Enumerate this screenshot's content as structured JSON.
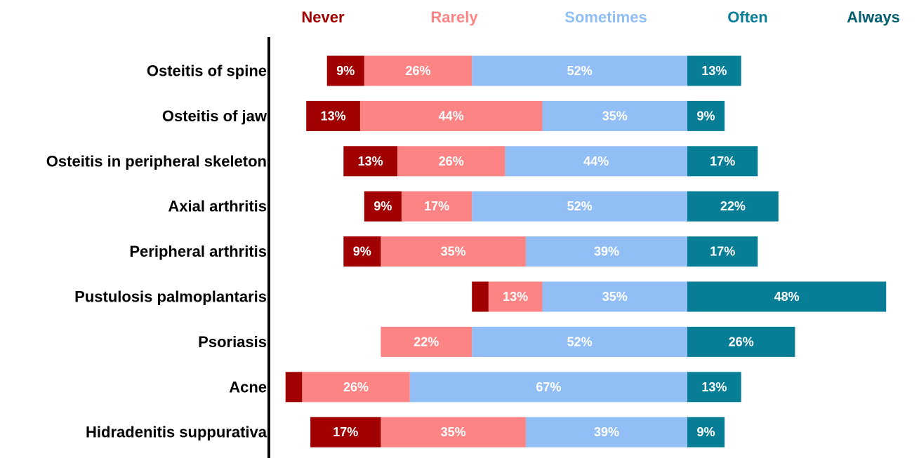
{
  "chart_data": {
    "type": "bar",
    "orientation": "horizontal",
    "stacked": true,
    "diverging": true,
    "legend_position": "top",
    "grid": false,
    "categories": [
      "Osteitis of spine",
      "Osteitis of jaw",
      "Osteitis in peripheral skeleton",
      "Axial arthritis",
      "Peripheral arthritis",
      "Pustulosis palmoplantaris",
      "Psoriasis",
      "Acne",
      "Hidradenitis suppurativa"
    ],
    "series": [
      {
        "name": "Never",
        "color": "#a00000",
        "values": [
          9,
          13,
          13,
          9,
          9,
          4,
          0,
          4,
          17
        ],
        "labels": [
          "9%",
          "13%",
          "13%",
          "9%",
          "9%",
          "",
          "",
          "",
          "17%"
        ]
      },
      {
        "name": "Rarely",
        "color": "#fc8484",
        "values": [
          26,
          44,
          26,
          17,
          35,
          13,
          22,
          26,
          35
        ],
        "labels": [
          "26%",
          "44%",
          "26%",
          "17%",
          "35%",
          "13%",
          "22%",
          "26%",
          "35%"
        ]
      },
      {
        "name": "Sometimes",
        "color": "#91bef5",
        "values": [
          52,
          35,
          44,
          52,
          39,
          35,
          52,
          67,
          39
        ],
        "labels": [
          "52%",
          "35%",
          "44%",
          "52%",
          "39%",
          "35%",
          "52%",
          "67%",
          "39%"
        ]
      },
      {
        "name": "Often",
        "color": "#077d96",
        "values": [
          13,
          9,
          17,
          22,
          17,
          48,
          26,
          13,
          9
        ],
        "labels": [
          "13%",
          "9%",
          "17%",
          "22%",
          "17%",
          "48%",
          "26%",
          "13%",
          "9%"
        ]
      },
      {
        "name": "Always",
        "color": "#045f6f",
        "values": [
          0,
          0,
          0,
          0,
          0,
          0,
          0,
          0,
          0
        ],
        "labels": [
          "",
          "",
          "",
          "",
          "",
          "",
          "",
          "",
          ""
        ]
      }
    ],
    "unit": "%"
  }
}
